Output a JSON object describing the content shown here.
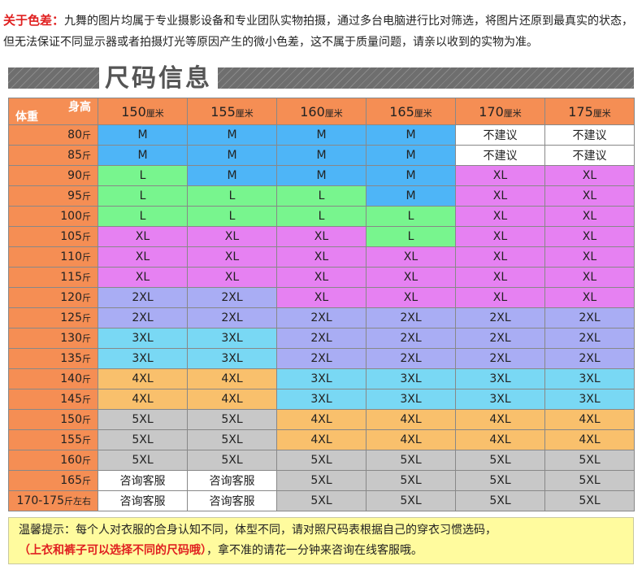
{
  "notice": {
    "label": "关于色差：",
    "text": "九舞的图片均属于专业摄影设备和专业团队实物拍摄，通过多台电脑进行比对筛选，将图片还原到最真实的状态，但无法保证不同显示器或者拍摄灯光等原因产生的微小色差，这不属于质量问题，请亲以收到的实物为准。"
  },
  "section_title": "尺码信息",
  "table": {
    "corner_height": "身高",
    "corner_weight": "体重",
    "height_unit": "厘米",
    "weight_unit": "斤",
    "heights": [
      "150",
      "155",
      "160",
      "165",
      "170",
      "175"
    ],
    "rows": [
      {
        "w": "80",
        "u": "斤",
        "cells": [
          "M",
          "M",
          "M",
          "M",
          "不建议",
          "不建议"
        ]
      },
      {
        "w": "85",
        "u": "斤",
        "cells": [
          "M",
          "M",
          "M",
          "M",
          "不建议",
          "不建议"
        ]
      },
      {
        "w": "90",
        "u": "斤",
        "cells": [
          "L",
          "M",
          "M",
          "M",
          "XL",
          "XL"
        ]
      },
      {
        "w": "95",
        "u": "斤",
        "cells": [
          "L",
          "L",
          "L",
          "M",
          "XL",
          "XL"
        ]
      },
      {
        "w": "100",
        "u": "斤",
        "cells": [
          "L",
          "L",
          "L",
          "L",
          "XL",
          "XL"
        ]
      },
      {
        "w": "105",
        "u": "斤",
        "cells": [
          "XL",
          "XL",
          "XL",
          "L",
          "XL",
          "XL"
        ]
      },
      {
        "w": "110",
        "u": "斤",
        "cells": [
          "XL",
          "XL",
          "XL",
          "XL",
          "XL",
          "XL"
        ]
      },
      {
        "w": "115",
        "u": "斤",
        "cells": [
          "XL",
          "XL",
          "XL",
          "XL",
          "XL",
          "XL"
        ]
      },
      {
        "w": "120",
        "u": "斤",
        "cells": [
          "2XL",
          "2XL",
          "XL",
          "XL",
          "XL",
          "XL"
        ]
      },
      {
        "w": "125",
        "u": "斤",
        "cells": [
          "2XL",
          "2XL",
          "2XL",
          "2XL",
          "2XL",
          "2XL"
        ]
      },
      {
        "w": "130",
        "u": "斤",
        "cells": [
          "3XL",
          "3XL",
          "2XL",
          "2XL",
          "2XL",
          "2XL"
        ]
      },
      {
        "w": "135",
        "u": "斤",
        "cells": [
          "3XL",
          "3XL",
          "2XL",
          "2XL",
          "2XL",
          "2XL"
        ]
      },
      {
        "w": "140",
        "u": "斤",
        "cells": [
          "4XL",
          "4XL",
          "3XL",
          "3XL",
          "3XL",
          "3XL"
        ]
      },
      {
        "w": "145",
        "u": "斤",
        "cells": [
          "4XL",
          "4XL",
          "3XL",
          "3XL",
          "3XL",
          "3XL"
        ]
      },
      {
        "w": "150",
        "u": "斤",
        "cells": [
          "5XL",
          "5XL",
          "4XL",
          "4XL",
          "4XL",
          "4XL"
        ]
      },
      {
        "w": "155",
        "u": "斤",
        "cells": [
          "5XL",
          "5XL",
          "4XL",
          "4XL",
          "4XL",
          "4XL"
        ]
      },
      {
        "w": "160",
        "u": "斤",
        "cells": [
          "5XL",
          "5XL",
          "5XL",
          "5XL",
          "5XL",
          "5XL"
        ]
      },
      {
        "w": "165",
        "u": "斤",
        "cells": [
          "咨询客服",
          "咨询客服",
          "5XL",
          "5XL",
          "5XL",
          "5XL"
        ]
      },
      {
        "w": "170-175",
        "u": "斤左右",
        "cells": [
          "咨询客服",
          "咨询客服",
          "5XL",
          "5XL",
          "5XL",
          "5XL"
        ]
      }
    ]
  },
  "colors": {
    "M": "#4eb5f7",
    "L": "#78f58e",
    "XL": "#e681f2",
    "2XL": "#a9adf4",
    "3XL": "#79d8f4",
    "4XL": "#f9c06c",
    "5XL": "#c8c8c8",
    "header": "#f58e54",
    "accent_red": "#e02020",
    "footer_bg": "#fffb9e"
  },
  "footer": {
    "line1": "温馨提示：每个人对衣服的合身认知不同，体型不同，请对照尺码表根据自己的穿衣习惯选码，",
    "line2_red": "（上衣和裤子可以选择不同的尺码哦）",
    "line2_rest": "，拿不准的请花一分钟来咨询在线客服哦。"
  }
}
